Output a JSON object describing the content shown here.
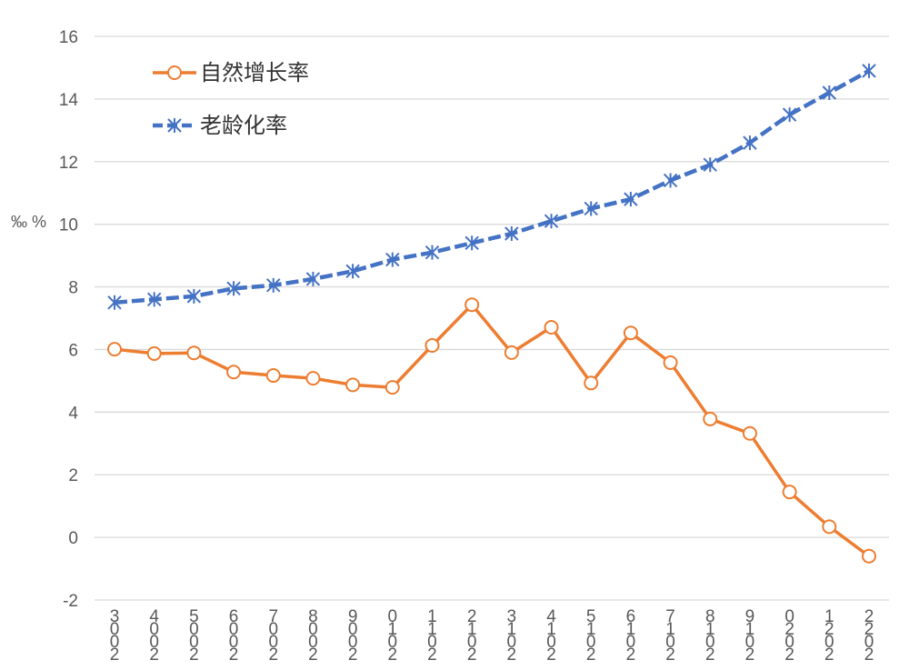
{
  "chart_data": {
    "type": "line",
    "ylabel": "‰ %",
    "ylim": [
      -2,
      16
    ],
    "yticks": [
      -2,
      0,
      2,
      4,
      6,
      8,
      10,
      12,
      14,
      16
    ],
    "grid": true,
    "legend_position": "top-left",
    "x": [
      "2003",
      "2004",
      "2005",
      "2006",
      "2007",
      "2008",
      "2009",
      "2010",
      "2011",
      "2012",
      "2013",
      "2014",
      "2015",
      "2016",
      "2017",
      "2018",
      "2019",
      "2020",
      "2021",
      "2022"
    ],
    "series": [
      {
        "name": "自然增长率",
        "color": "#ed7d31",
        "marker": "circle",
        "values": [
          6.01,
          5.87,
          5.89,
          5.28,
          5.17,
          5.08,
          4.87,
          4.79,
          6.13,
          7.43,
          5.9,
          6.71,
          4.93,
          6.53,
          5.58,
          3.78,
          3.32,
          1.45,
          0.34,
          -0.6
        ]
      },
      {
        "name": "老龄化率",
        "color": "#4472c4",
        "marker": "star",
        "values": [
          7.5,
          7.6,
          7.7,
          7.95,
          8.05,
          8.25,
          8.5,
          8.87,
          9.1,
          9.4,
          9.7,
          10.1,
          10.5,
          10.8,
          11.4,
          11.9,
          12.6,
          13.5,
          14.2,
          14.9
        ]
      }
    ]
  }
}
